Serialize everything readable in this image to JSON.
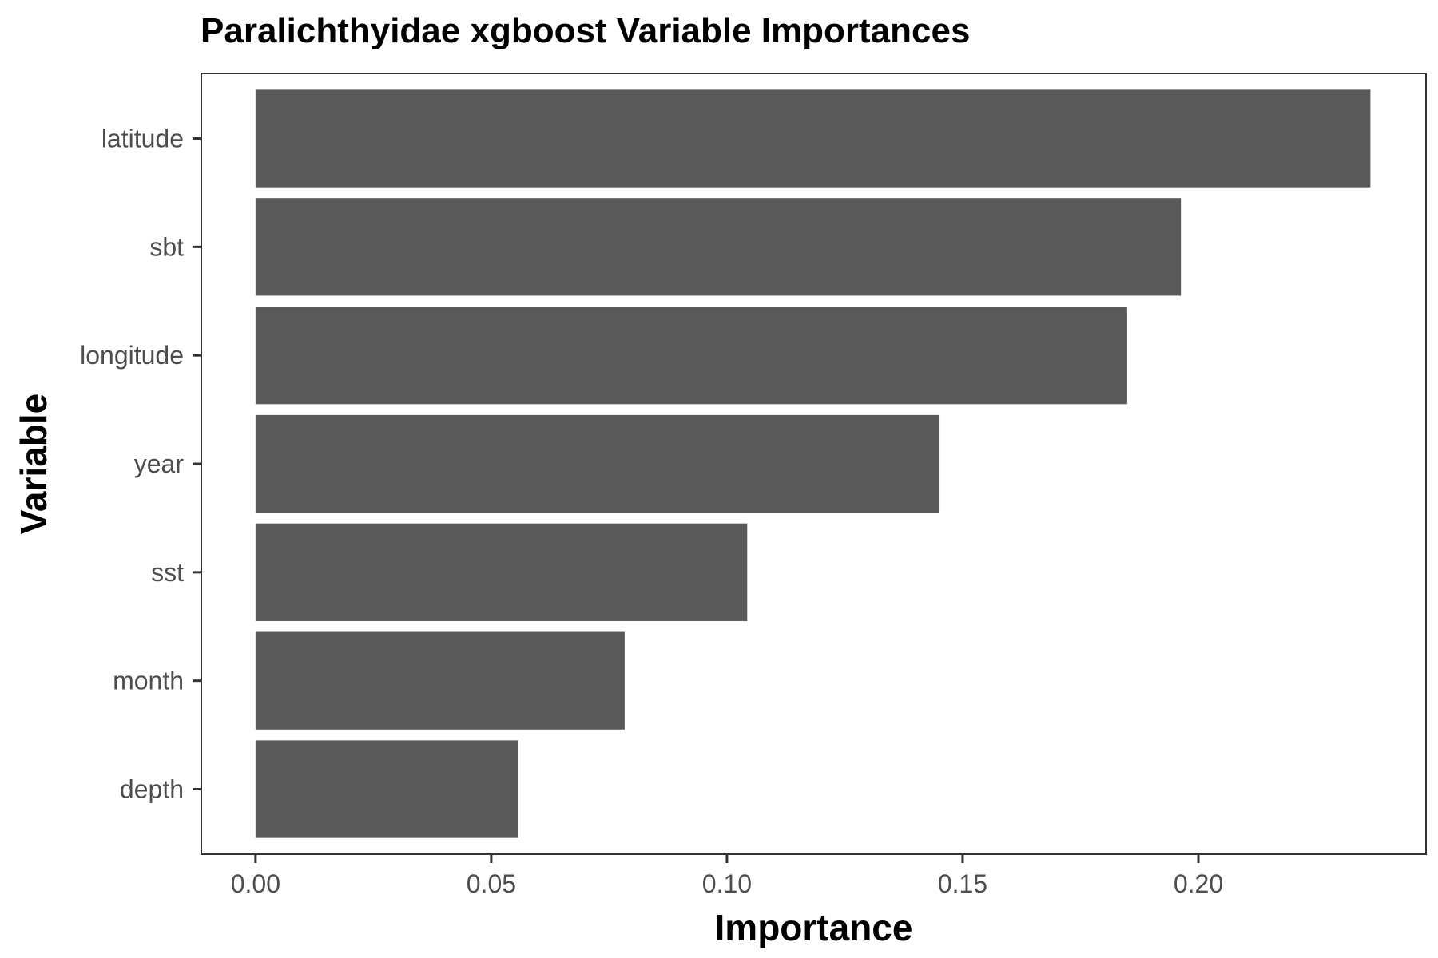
{
  "chart_data": {
    "type": "bar",
    "orientation": "horizontal",
    "title": "Paralichthyidae xgboost Variable Importances",
    "xlabel": "Importance",
    "ylabel": "Variable",
    "categories": [
      "latitude",
      "sbt",
      "longitude",
      "year",
      "sst",
      "month",
      "depth"
    ],
    "values": [
      0.2365,
      0.1963,
      0.1849,
      0.1451,
      0.1043,
      0.0783,
      0.0557
    ],
    "xlim": [
      -0.0115,
      0.2483
    ],
    "xticks": [
      0.0,
      0.05,
      0.1,
      0.15,
      0.2
    ],
    "xtick_labels": [
      "0.00",
      "0.05",
      "0.10",
      "0.15",
      "0.20"
    ],
    "grid": false,
    "legend": "none",
    "bar_color": "#595959",
    "panel_border_color": "#333333",
    "background": "#ffffff"
  }
}
